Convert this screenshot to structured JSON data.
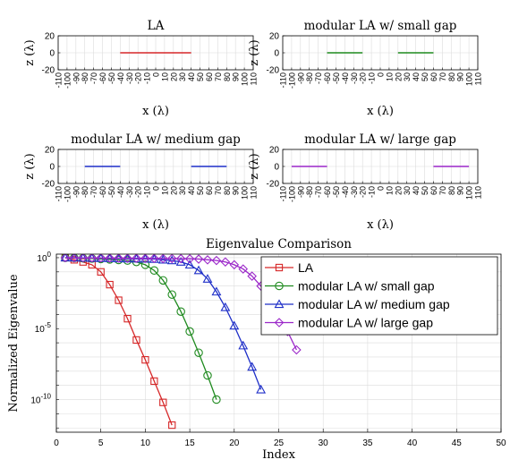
{
  "chart_data": [
    {
      "type": "line",
      "title": "LA",
      "xlabel": "x (λ)",
      "ylabel": "z (λ)",
      "xlim": [
        -110,
        110
      ],
      "ylim": [
        -20,
        20
      ],
      "xticks": [
        -110,
        -100,
        -90,
        -80,
        -70,
        -60,
        -50,
        -40,
        -30,
        -20,
        -10,
        0,
        10,
        20,
        30,
        40,
        50,
        60,
        70,
        80,
        90,
        100,
        110
      ],
      "yticks": [
        -20,
        0,
        20
      ],
      "grid": true,
      "segments": [
        {
          "x": [
            -40,
            40
          ],
          "z": 0,
          "color": "#d62728"
        }
      ]
    },
    {
      "type": "line",
      "title": "modular LA w/ small gap",
      "xlabel": "x (λ)",
      "ylabel": "z (λ)",
      "xlim": [
        -110,
        110
      ],
      "ylim": [
        -20,
        20
      ],
      "xticks": [
        -110,
        -100,
        -90,
        -80,
        -70,
        -60,
        -50,
        -40,
        -30,
        -20,
        -10,
        0,
        10,
        20,
        30,
        40,
        50,
        60,
        70,
        80,
        90,
        100,
        110
      ],
      "yticks": [
        -20,
        0,
        20
      ],
      "grid": true,
      "segments": [
        {
          "x": [
            -60,
            -20
          ],
          "z": 0,
          "color": "#1f8a1f"
        },
        {
          "x": [
            20,
            60
          ],
          "z": 0,
          "color": "#1f8a1f"
        }
      ]
    },
    {
      "type": "line",
      "title": "modular LA w/ medium gap",
      "xlabel": "x (λ)",
      "ylabel": "z (λ)",
      "xlim": [
        -110,
        110
      ],
      "ylim": [
        -20,
        20
      ],
      "xticks": [
        -110,
        -100,
        -90,
        -80,
        -70,
        -60,
        -50,
        -40,
        -30,
        -20,
        -10,
        0,
        10,
        20,
        30,
        40,
        50,
        60,
        70,
        80,
        90,
        100,
        110
      ],
      "yticks": [
        -20,
        0,
        20
      ],
      "grid": true,
      "segments": [
        {
          "x": [
            -80,
            -40
          ],
          "z": 0,
          "color": "#1f2fc8"
        },
        {
          "x": [
            40,
            80
          ],
          "z": 0,
          "color": "#1f2fc8"
        }
      ]
    },
    {
      "type": "line",
      "title": "modular LA w/ large gap",
      "xlabel": "x (λ)",
      "ylabel": "z (λ)",
      "xlim": [
        -110,
        110
      ],
      "ylim": [
        -20,
        20
      ],
      "xticks": [
        -110,
        -100,
        -90,
        -80,
        -70,
        -60,
        -50,
        -40,
        -30,
        -20,
        -10,
        0,
        10,
        20,
        30,
        40,
        50,
        60,
        70,
        80,
        90,
        100,
        110
      ],
      "yticks": [
        -20,
        0,
        20
      ],
      "grid": true,
      "segments": [
        {
          "x": [
            -100,
            -60
          ],
          "z": 0,
          "color": "#9b27c9"
        },
        {
          "x": [
            60,
            100
          ],
          "z": 0,
          "color": "#9b27c9"
        }
      ]
    },
    {
      "type": "line",
      "title": "Eigenvalue Comparison",
      "xlabel": "Index",
      "ylabel": "Normalized Eigenvalue",
      "xlim": [
        0,
        50
      ],
      "ylim_log10": [
        -12.3,
        0.25
      ],
      "yscale": "log",
      "xticks": [
        0,
        5,
        10,
        15,
        20,
        25,
        30,
        35,
        40,
        45,
        50
      ],
      "yticks": [
        {
          "value": 1,
          "label": "10^0"
        },
        {
          "value": 1e-05,
          "label": "10^-5"
        },
        {
          "value": 1e-10,
          "label": "10^-10"
        }
      ],
      "grid": true,
      "legend_position": "top-right",
      "series": [
        {
          "name": "LA",
          "color": "#d62728",
          "marker": "square",
          "x": [
            1,
            2,
            3,
            4,
            5,
            6,
            7,
            8,
            9,
            10,
            11,
            12,
            13
          ],
          "log10_y": [
            0,
            -0.15,
            -0.3,
            -0.5,
            -1.0,
            -1.9,
            -3.0,
            -4.3,
            -5.8,
            -7.2,
            -8.7,
            -10.2,
            -11.8
          ]
        },
        {
          "name": "modular LA w/ small gap",
          "color": "#1f8a1f",
          "marker": "circle",
          "x": [
            1,
            2,
            3,
            4,
            5,
            6,
            7,
            8,
            9,
            10,
            11,
            12,
            13,
            14,
            15,
            16,
            17,
            18
          ],
          "log10_y": [
            0,
            -0.02,
            -0.04,
            -0.06,
            -0.09,
            -0.12,
            -0.16,
            -0.2,
            -0.3,
            -0.5,
            -0.9,
            -1.6,
            -2.6,
            -3.8,
            -5.2,
            -6.7,
            -8.3,
            -10.0
          ]
        },
        {
          "name": "modular LA w/ medium gap",
          "color": "#1f2fc8",
          "marker": "triangle",
          "x": [
            1,
            2,
            3,
            4,
            5,
            6,
            7,
            8,
            9,
            10,
            11,
            12,
            13,
            14,
            15,
            16,
            17,
            18,
            19,
            20,
            21,
            22,
            23
          ],
          "log10_y": [
            0,
            -0.01,
            -0.02,
            -0.03,
            -0.04,
            -0.05,
            -0.06,
            -0.07,
            -0.08,
            -0.09,
            -0.1,
            -0.15,
            -0.2,
            -0.3,
            -0.5,
            -0.9,
            -1.5,
            -2.4,
            -3.5,
            -4.8,
            -6.2,
            -7.7,
            -9.3
          ]
        },
        {
          "name": "modular LA w/ large gap",
          "color": "#9b27c9",
          "marker": "diamond",
          "x": [
            1,
            2,
            3,
            4,
            5,
            6,
            7,
            8,
            9,
            10,
            11,
            12,
            13,
            14,
            15,
            16,
            17,
            18,
            19,
            20,
            21,
            22,
            23,
            24,
            25,
            26,
            27
          ],
          "log10_y": [
            0,
            -0.01,
            -0.01,
            -0.02,
            -0.02,
            -0.03,
            -0.03,
            -0.04,
            -0.04,
            -0.05,
            -0.05,
            -0.06,
            -0.06,
            -0.07,
            -0.08,
            -0.1,
            -0.15,
            -0.2,
            -0.3,
            -0.5,
            -0.8,
            -1.3,
            -2.0,
            -2.9,
            -4.0,
            -5.2,
            -6.5
          ]
        }
      ]
    }
  ]
}
